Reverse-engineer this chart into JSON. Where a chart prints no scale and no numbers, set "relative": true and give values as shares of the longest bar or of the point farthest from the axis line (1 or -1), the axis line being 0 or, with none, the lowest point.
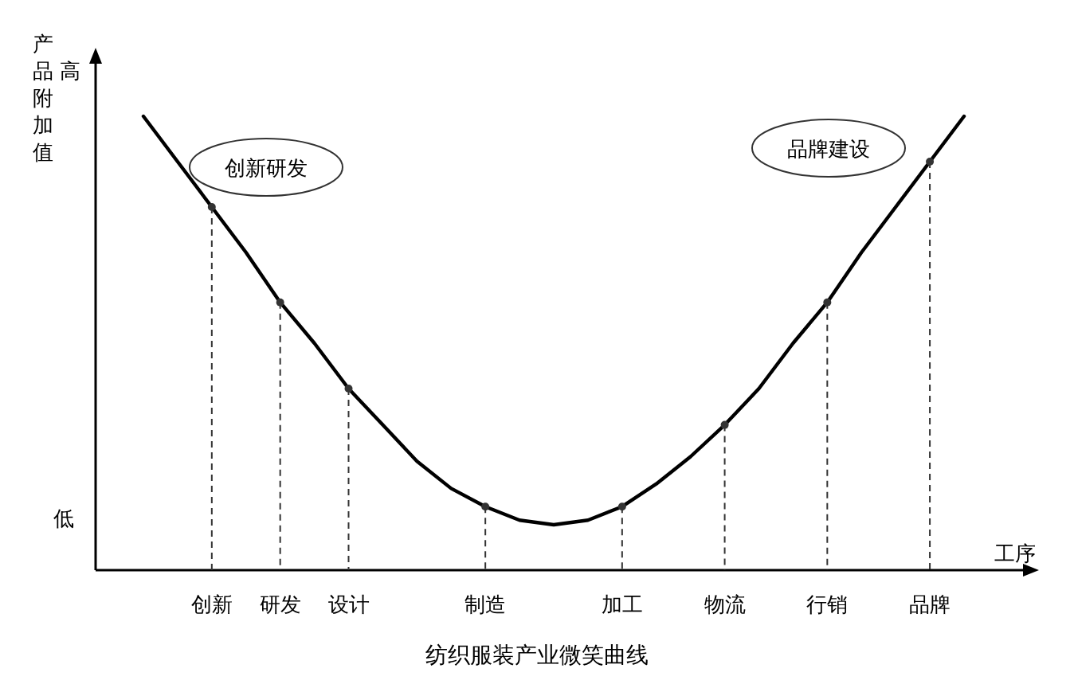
{
  "chart_data": {
    "type": "line",
    "title": "纺织服装产业微笑曲线",
    "xlabel": "工序",
    "ylabel": "产品附加值",
    "relative": true,
    "categories": [
      null,
      null,
      "创新",
      null,
      "研发",
      null,
      "设计",
      null,
      null,
      null,
      "制造",
      null,
      null,
      null,
      "加工",
      null,
      null,
      "物流",
      null,
      null,
      "行销",
      null,
      null,
      "品牌",
      null
    ],
    "series": [
      {
        "color": "#000000",
        "values": [
          1.0,
          0.9,
          0.8,
          0.7,
          0.59,
          0.5,
          0.4,
          0.32,
          0.24,
          0.18,
          0.14,
          0.11,
          0.1,
          0.11,
          0.14,
          0.19,
          0.25,
          0.32,
          0.4,
          0.5,
          0.59,
          0.7,
          0.8,
          0.9,
          1.0
        ]
      },
      {
        "type": "lollipop",
        "color": "#333333",
        "line_style": "dashed",
        "values": [
          null,
          null,
          0.8,
          null,
          0.59,
          null,
          0.4,
          null,
          null,
          null,
          0.14,
          null,
          null,
          null,
          0.14,
          null,
          null,
          0.32,
          null,
          null,
          0.59,
          null,
          null,
          0.9,
          null
        ]
      }
    ],
    "annotations": [
      "高",
      "低",
      "创新研发",
      "品牌建设"
    ]
  }
}
